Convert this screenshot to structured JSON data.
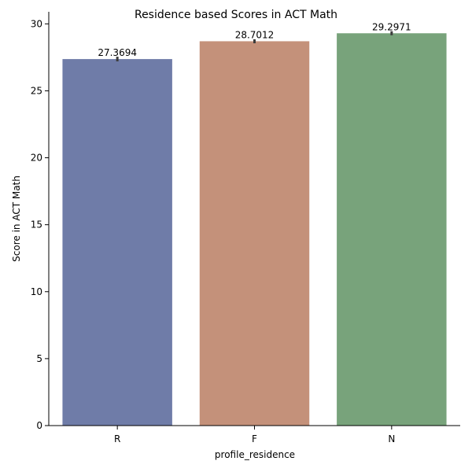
{
  "chart_data": {
    "type": "bar",
    "title": "Residence based Scores in ACT Math",
    "xlabel": "profile_residence",
    "ylabel": "Score in ACT Math",
    "categories": [
      "R",
      "F",
      "N"
    ],
    "values": [
      27.3694,
      28.7012,
      29.2971
    ],
    "value_labels": [
      "27.3694",
      "28.7012",
      "29.2971"
    ],
    "error_low": [
      27.2,
      28.55,
      29.15
    ],
    "error_high": [
      27.55,
      28.85,
      29.45
    ],
    "ylim": [
      0,
      30.9
    ],
    "yticks": [
      0,
      5,
      10,
      15,
      20,
      25,
      30
    ],
    "colors": [
      "#6f7ca8",
      "#c4917a",
      "#78a37b"
    ],
    "errorbar_color": "#3d3d3d",
    "grid": false,
    "legend": "none"
  }
}
